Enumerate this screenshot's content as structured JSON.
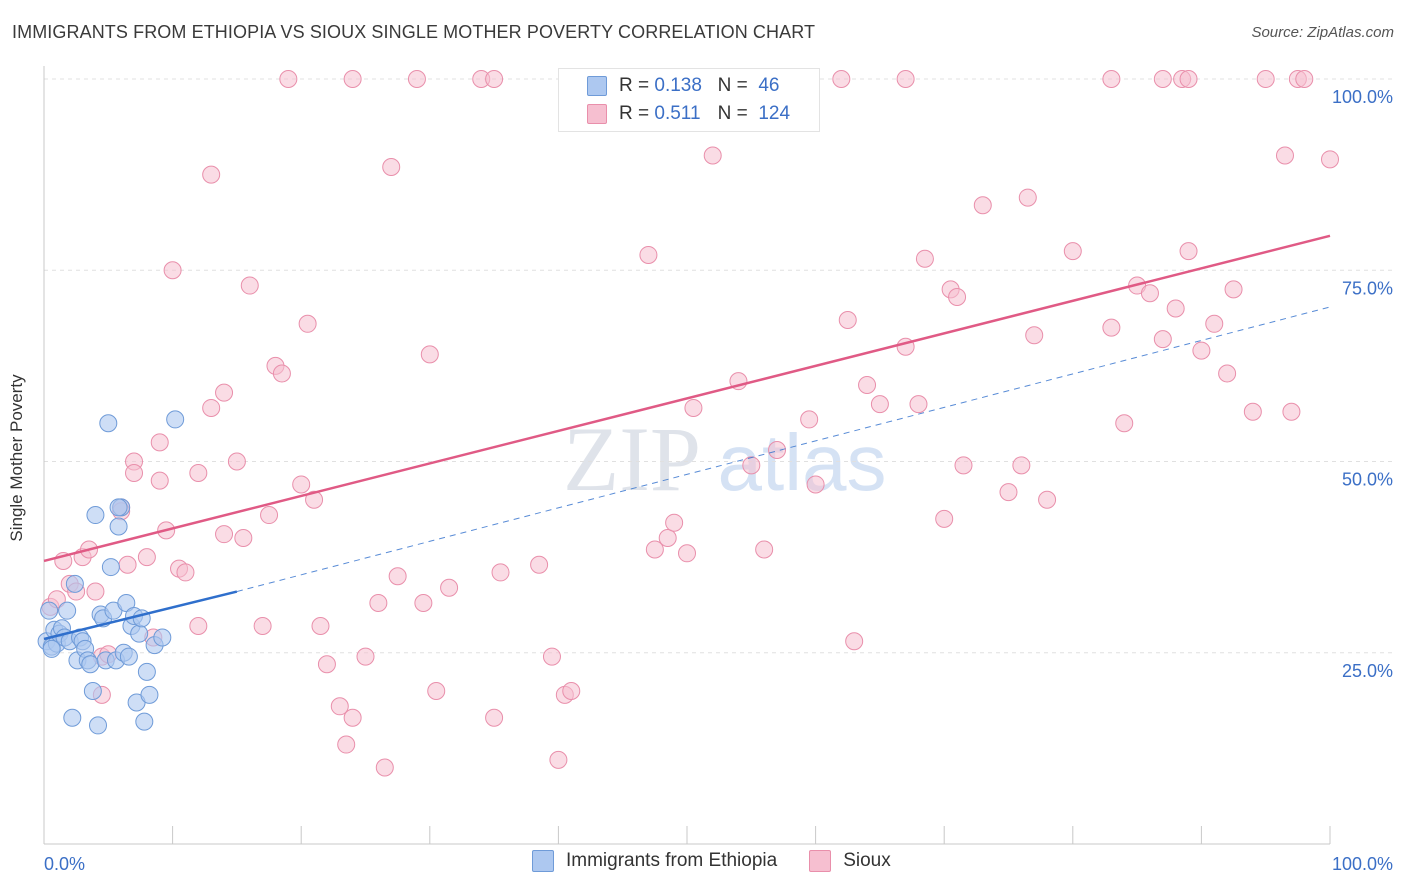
{
  "title": "IMMIGRANTS FROM ETHIOPIA VS SIOUX SINGLE MOTHER POVERTY CORRELATION CHART",
  "source": "Source: ZipAtlas.com",
  "watermark": {
    "zip": "ZIP",
    "atlas": "atlas"
  },
  "colors": {
    "blue_fill": "#adc8f0",
    "blue_stroke": "#6f9bd8",
    "blue_line": "#2f6fcc",
    "pink_fill": "#f6bfd0",
    "pink_stroke": "#e98fab",
    "pink_line": "#e05a85",
    "axis_text": "#3b6fc6",
    "grid": "#e0e0e0"
  },
  "legend_top": {
    "rows": [
      {
        "r_label": "R =",
        "r_value": "0.138",
        "n_label": "N =",
        "n_value": "46",
        "color": "#adc8f0"
      },
      {
        "r_label": "R =",
        "r_value": "0.511",
        "n_label": "N =",
        "n_value": "124",
        "color": "#f6bfd0"
      }
    ]
  },
  "legend_bottom": [
    {
      "label": "Immigrants from Ethiopia",
      "color": "#adc8f0"
    },
    {
      "label": "Sioux",
      "color": "#f6bfd0"
    }
  ],
  "chart_data": {
    "type": "scatter",
    "title": "IMMIGRANTS FROM ETHIOPIA VS SIOUX SINGLE MOTHER POVERTY CORRELATION CHART",
    "xlabel": "",
    "ylabel": "Single Mother Poverty",
    "xlim": [
      0,
      100
    ],
    "ylim": [
      0,
      100
    ],
    "x_tick_labels": [
      "0.0%",
      "100.0%"
    ],
    "y_tick_labels": [
      "25.0%",
      "50.0%",
      "75.0%",
      "100.0%"
    ],
    "y_ticks": [
      25,
      50,
      75,
      100
    ],
    "series": [
      {
        "name": "Immigrants from Ethiopia",
        "r": 0.138,
        "n": 46,
        "trend_solid": {
          "x": [
            0,
            15
          ],
          "y": [
            26.8,
            33.0
          ]
        },
        "trend_dashed": {
          "x": [
            15,
            100
          ],
          "y": [
            33.0,
            70.2
          ]
        },
        "points": [
          [
            0.2,
            26.5
          ],
          [
            0.4,
            30.5
          ],
          [
            0.6,
            25.8
          ],
          [
            0.8,
            28.0
          ],
          [
            1.0,
            26.2
          ],
          [
            1.2,
            27.5
          ],
          [
            1.4,
            28.2
          ],
          [
            1.6,
            27.0
          ],
          [
            1.8,
            30.5
          ],
          [
            2.0,
            26.5
          ],
          [
            2.2,
            16.5
          ],
          [
            2.4,
            34.0
          ],
          [
            2.6,
            24.0
          ],
          [
            2.8,
            27.0
          ],
          [
            3.0,
            26.5
          ],
          [
            3.2,
            25.5
          ],
          [
            3.4,
            24.0
          ],
          [
            3.6,
            23.5
          ],
          [
            3.8,
            20.0
          ],
          [
            4.0,
            43.0
          ],
          [
            4.2,
            15.5
          ],
          [
            4.4,
            30.0
          ],
          [
            4.6,
            29.5
          ],
          [
            4.8,
            24.0
          ],
          [
            5.0,
            55.0
          ],
          [
            5.2,
            36.2
          ],
          [
            5.4,
            30.5
          ],
          [
            5.6,
            24.0
          ],
          [
            5.8,
            41.5
          ],
          [
            6.0,
            44.0
          ],
          [
            6.2,
            25.0
          ],
          [
            6.4,
            31.5
          ],
          [
            6.6,
            24.5
          ],
          [
            6.8,
            28.5
          ],
          [
            7.0,
            29.8
          ],
          [
            7.2,
            18.5
          ],
          [
            7.4,
            27.5
          ],
          [
            7.6,
            29.5
          ],
          [
            7.8,
            16.0
          ],
          [
            8.0,
            22.5
          ],
          [
            8.2,
            19.5
          ],
          [
            8.6,
            26.0
          ],
          [
            9.2,
            27.0
          ],
          [
            10.2,
            55.5
          ],
          [
            0.6,
            25.5
          ],
          [
            5.8,
            44.0
          ]
        ]
      },
      {
        "name": "Sioux",
        "r": 0.511,
        "n": 124,
        "trend_solid": {
          "x": [
            0,
            100
          ],
          "y": [
            37.0,
            79.5
          ]
        },
        "points": [
          [
            0.5,
            31.0
          ],
          [
            1.0,
            32.0
          ],
          [
            1.5,
            37.0
          ],
          [
            2.0,
            34.0
          ],
          [
            2.5,
            33.0
          ],
          [
            3.0,
            37.5
          ],
          [
            3.5,
            38.5
          ],
          [
            4.0,
            33.0
          ],
          [
            4.5,
            19.5
          ],
          [
            4.5,
            24.5
          ],
          [
            5.0,
            24.8
          ],
          [
            6.0,
            44.0
          ],
          [
            6.0,
            43.5
          ],
          [
            6.5,
            36.5
          ],
          [
            7.0,
            50.0
          ],
          [
            7.0,
            48.5
          ],
          [
            8.0,
            37.5
          ],
          [
            8.5,
            27.0
          ],
          [
            9.0,
            47.5
          ],
          [
            9.0,
            52.5
          ],
          [
            9.5,
            41.0
          ],
          [
            10.0,
            75.0
          ],
          [
            10.5,
            36.0
          ],
          [
            11.0,
            35.5
          ],
          [
            12.0,
            48.5
          ],
          [
            12.0,
            28.5
          ],
          [
            13.0,
            57.0
          ],
          [
            13.0,
            87.5
          ],
          [
            14.0,
            59.0
          ],
          [
            14.0,
            40.5
          ],
          [
            15.0,
            50.0
          ],
          [
            15.5,
            40.0
          ],
          [
            16.0,
            73.0
          ],
          [
            17.0,
            28.5
          ],
          [
            17.5,
            43.0
          ],
          [
            18.0,
            62.5
          ],
          [
            18.5,
            61.5
          ],
          [
            19.0,
            100.0
          ],
          [
            20.0,
            47.0
          ],
          [
            20.5,
            68.0
          ],
          [
            21.0,
            45.0
          ],
          [
            21.5,
            28.5
          ],
          [
            22.0,
            23.5
          ],
          [
            23.0,
            18.0
          ],
          [
            23.5,
            13.0
          ],
          [
            24.0,
            16.5
          ],
          [
            24.0,
            100.0
          ],
          [
            25.0,
            24.5
          ],
          [
            26.0,
            31.5
          ],
          [
            26.5,
            10.0
          ],
          [
            27.0,
            88.5
          ],
          [
            27.5,
            35.0
          ],
          [
            29.0,
            100.0
          ],
          [
            29.5,
            31.5
          ],
          [
            30.0,
            64.0
          ],
          [
            30.5,
            20.0
          ],
          [
            31.5,
            33.5
          ],
          [
            34.0,
            100.0
          ],
          [
            35.0,
            100.0
          ],
          [
            35.0,
            16.5
          ],
          [
            35.5,
            35.5
          ],
          [
            38.5,
            36.5
          ],
          [
            39.5,
            24.5
          ],
          [
            40.0,
            11.0
          ],
          [
            40.5,
            19.5
          ],
          [
            41.0,
            20.0
          ],
          [
            43.0,
            100.0
          ],
          [
            47.0,
            77.0
          ],
          [
            47.5,
            38.5
          ],
          [
            48.5,
            40.0
          ],
          [
            49.0,
            42.0
          ],
          [
            50.0,
            38.0
          ],
          [
            50.5,
            57.0
          ],
          [
            52.0,
            90.0
          ],
          [
            54.0,
            60.5
          ],
          [
            55.0,
            100.0
          ],
          [
            55.0,
            49.5
          ],
          [
            56.0,
            38.5
          ],
          [
            57.0,
            51.5
          ],
          [
            59.5,
            55.5
          ],
          [
            60.0,
            47.0
          ],
          [
            62.0,
            100.0
          ],
          [
            62.5,
            68.5
          ],
          [
            63.0,
            26.5
          ],
          [
            64.0,
            60.0
          ],
          [
            65.0,
            57.5
          ],
          [
            67.0,
            100.0
          ],
          [
            67.0,
            65.0
          ],
          [
            68.0,
            57.5
          ],
          [
            68.5,
            76.5
          ],
          [
            70.0,
            42.5
          ],
          [
            70.5,
            72.5
          ],
          [
            71.0,
            71.5
          ],
          [
            71.5,
            49.5
          ],
          [
            73.0,
            83.5
          ],
          [
            75.0,
            46.0
          ],
          [
            76.0,
            49.5
          ],
          [
            76.5,
            84.5
          ],
          [
            77.0,
            66.5
          ],
          [
            78.0,
            45.0
          ],
          [
            80.0,
            77.5
          ],
          [
            83.0,
            100.0
          ],
          [
            83.0,
            67.5
          ],
          [
            84.0,
            55.0
          ],
          [
            85.0,
            73.0
          ],
          [
            86.0,
            72.0
          ],
          [
            87.0,
            100.0
          ],
          [
            87.0,
            66.0
          ],
          [
            88.0,
            70.0
          ],
          [
            88.5,
            100.0
          ],
          [
            89.0,
            100.0
          ],
          [
            89.0,
            77.5
          ],
          [
            90.0,
            64.5
          ],
          [
            91.0,
            68.0
          ],
          [
            92.0,
            61.5
          ],
          [
            92.5,
            72.5
          ],
          [
            94.0,
            56.5
          ],
          [
            95.0,
            100.0
          ],
          [
            97.0,
            56.5
          ],
          [
            97.5,
            100.0
          ],
          [
            98.0,
            100.0
          ],
          [
            96.5,
            90.0
          ],
          [
            100.0,
            89.5
          ]
        ]
      }
    ]
  }
}
